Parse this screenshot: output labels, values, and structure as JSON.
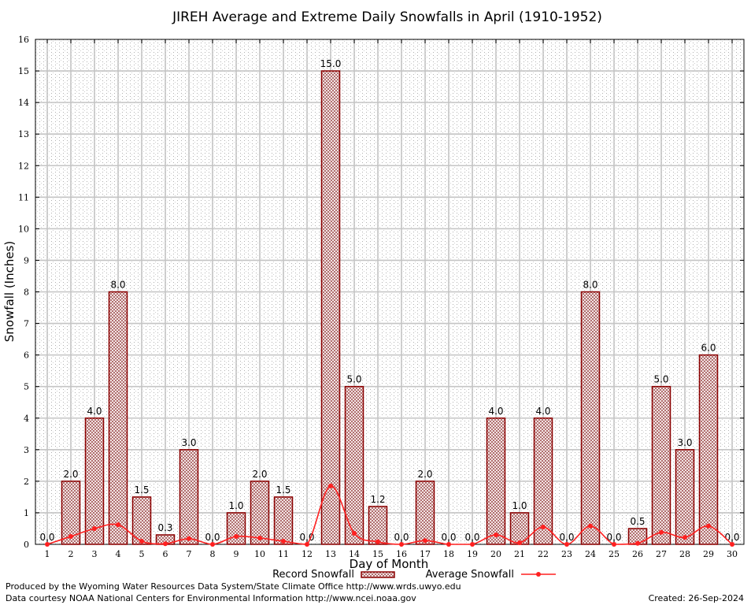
{
  "chart_data": {
    "type": "bar",
    "title": "JIREH Average and Extreme Daily Snowfalls in April (1910-1952)",
    "xlabel": "Day of Month",
    "ylabel": "Snowfall (Inches)",
    "ylim": [
      0,
      16
    ],
    "grid": true,
    "legend_position": "bottom-center",
    "categories": [
      "1",
      "2",
      "3",
      "4",
      "5",
      "6",
      "7",
      "8",
      "9",
      "10",
      "11",
      "12",
      "13",
      "14",
      "15",
      "16",
      "17",
      "18",
      "19",
      "20",
      "21",
      "22",
      "23",
      "24",
      "25",
      "26",
      "27",
      "28",
      "29",
      "30"
    ],
    "series": [
      {
        "name": "Record Snowfall",
        "kind": "bar",
        "color": "#8b0000",
        "values": [
          0.0,
          2.0,
          4.0,
          8.0,
          1.5,
          0.3,
          3.0,
          0.0,
          1.0,
          2.0,
          1.5,
          0.0,
          15.0,
          5.0,
          1.2,
          0.0,
          2.0,
          0.0,
          0.0,
          4.0,
          1.0,
          4.0,
          0.0,
          8.0,
          0.0,
          0.5,
          5.0,
          3.0,
          6.0,
          0.0
        ],
        "labels": [
          "0.0",
          "2.0",
          "4.0",
          "8.0",
          "1.5",
          "0.3",
          "3.0",
          "0.0",
          "1.0",
          "2.0",
          "1.5",
          "0.0",
          "15.0",
          "5.0",
          "1.2",
          "0.0",
          "2.0",
          "0.0",
          "0.0",
          "4.0",
          "1.0",
          "4.0",
          "0.0",
          "8.0",
          "0.0",
          "0.5",
          "5.0",
          "3.0",
          "6.0",
          "0.0"
        ]
      },
      {
        "name": "Average Snowfall",
        "kind": "line",
        "color": "#ff2020",
        "values": [
          0.0,
          0.25,
          0.5,
          0.62,
          0.1,
          0.02,
          0.18,
          0.0,
          0.25,
          0.2,
          0.1,
          0.0,
          1.85,
          0.35,
          0.08,
          0.0,
          0.12,
          0.0,
          0.0,
          0.3,
          0.05,
          0.55,
          0.0,
          0.58,
          0.0,
          0.03,
          0.38,
          0.22,
          0.58,
          0.0
        ]
      }
    ]
  },
  "footer": {
    "produced_by": "Produced by the Wyoming Water Resources Data System/State Climate Office http://www.wrds.uwyo.edu",
    "courtesy": "Data courtesy NOAA National Centers for Environmental Information http://www.ncei.noaa.gov",
    "created": "Created:  26-Sep-2024"
  }
}
